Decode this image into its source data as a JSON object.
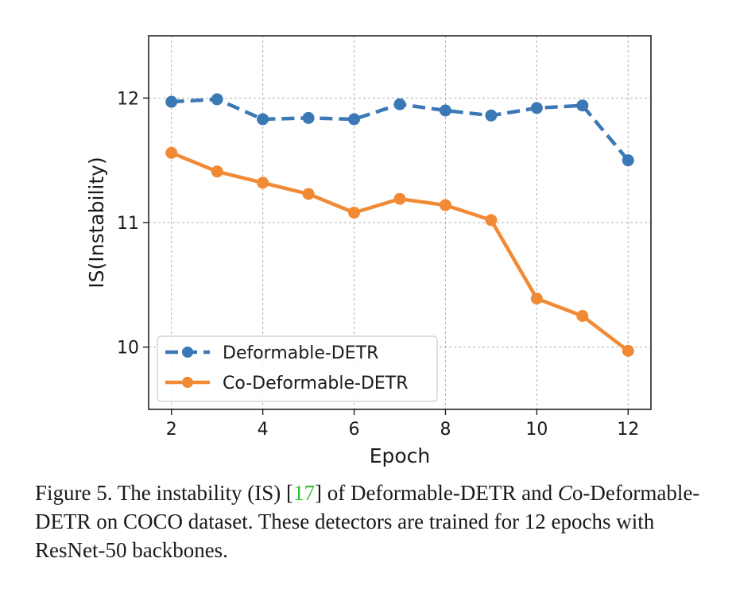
{
  "chart_data": {
    "type": "line",
    "xlabel": "Epoch",
    "ylabel": "IS(Instability)",
    "xlim": [
      1.5,
      12.5
    ],
    "ylim": [
      9.5,
      12.5
    ],
    "xticks": [
      2,
      4,
      6,
      8,
      10,
      12
    ],
    "yticks": [
      10,
      11,
      12
    ],
    "x": [
      2,
      3,
      4,
      5,
      6,
      7,
      8,
      9,
      10,
      11,
      12
    ],
    "grid": true,
    "legend_location": "lower-left",
    "series": [
      {
        "name": "Deformable-DETR",
        "color": "#3b78b6",
        "line_style": "dashed",
        "values": [
          11.97,
          11.99,
          11.83,
          11.84,
          11.83,
          11.95,
          11.9,
          11.86,
          11.92,
          11.94,
          11.5
        ]
      },
      {
        "name": "Co-Deformable-DETR",
        "color": "#f08a35",
        "line_style": "solid",
        "values": [
          11.56,
          11.41,
          11.32,
          11.23,
          11.08,
          11.19,
          11.14,
          11.02,
          10.39,
          10.25,
          9.97
        ]
      }
    ]
  },
  "caption": {
    "prefix": "Figure 5.  The instability (IS) [",
    "ref": "17",
    "middle": "] of Deformable-DETR and ",
    "calligraphic": "C",
    "suffix": "o-Deformable-DETR on COCO dataset. These detectors are trained for 12 epochs with ResNet-50 backbones."
  }
}
